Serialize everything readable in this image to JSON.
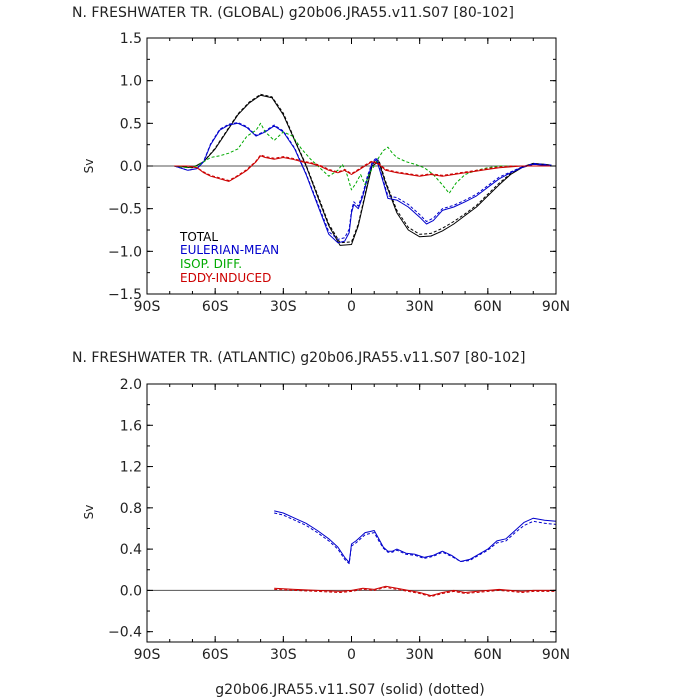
{
  "footer": "g20b06.JRA55.v11.S07 (solid)  (dotted)",
  "colors": {
    "total": "#000000",
    "eulerian": "#0000cc",
    "isop": "#00aa00",
    "eddy": "#cc0000",
    "axis": "#000000",
    "zero": "#555555"
  },
  "chart_data": [
    {
      "type": "line",
      "title": "N. FRESHWATER TR. (GLOBAL) g20b06.JRA55.v11.S07 [80-102]",
      "ylabel": "Sv",
      "xlim": [
        -90,
        90
      ],
      "ylim": [
        -1.5,
        1.5
      ],
      "xticks": [
        -90,
        -60,
        -30,
        0,
        30,
        60,
        90
      ],
      "xtick_labels": [
        "90S",
        "60S",
        "30S",
        "0",
        "30N",
        "60N",
        "90N"
      ],
      "yticks": [
        -1.5,
        -1.0,
        -0.5,
        0.0,
        0.5,
        1.0,
        1.5
      ],
      "ytick_labels": [
        "−1.5",
        "−1.0",
        "−0.5",
        "0.0",
        "0.5",
        "1.0",
        "1.5"
      ],
      "legend": [
        "TOTAL",
        "EULERIAN-MEAN",
        "ISOP. DIFF.",
        "EDDY-INDUCED"
      ],
      "series": [
        {
          "key": "total",
          "style": "solid",
          "x": [
            -78,
            -70,
            -65,
            -60,
            -55,
            -50,
            -45,
            -40,
            -35,
            -30,
            -25,
            -20,
            -15,
            -10,
            -5,
            0,
            3,
            6,
            9,
            12,
            15,
            20,
            25,
            30,
            35,
            40,
            45,
            50,
            55,
            60,
            65,
            70,
            75,
            80,
            85,
            88
          ],
          "y": [
            0.0,
            -0.02,
            0.05,
            0.2,
            0.4,
            0.6,
            0.74,
            0.83,
            0.8,
            0.6,
            0.3,
            0.0,
            -0.35,
            -0.7,
            -0.93,
            -0.92,
            -0.7,
            -0.35,
            0.0,
            0.05,
            -0.2,
            -0.55,
            -0.75,
            -0.83,
            -0.82,
            -0.76,
            -0.68,
            -0.58,
            -0.48,
            -0.35,
            -0.22,
            -0.1,
            -0.02,
            0.02,
            0.01,
            0.0
          ]
        },
        {
          "key": "total",
          "style": "dotted",
          "x": [
            -78,
            -70,
            -65,
            -60,
            -55,
            -50,
            -45,
            -40,
            -35,
            -30,
            -25,
            -20,
            -15,
            -10,
            -5,
            0,
            3,
            6,
            9,
            12,
            15,
            20,
            25,
            30,
            35,
            40,
            45,
            50,
            55,
            60,
            65,
            70,
            75,
            80,
            85,
            88
          ],
          "y": [
            0.0,
            -0.02,
            0.05,
            0.21,
            0.41,
            0.61,
            0.75,
            0.84,
            0.81,
            0.62,
            0.31,
            0.01,
            -0.33,
            -0.68,
            -0.9,
            -0.89,
            -0.68,
            -0.33,
            0.02,
            0.07,
            -0.18,
            -0.52,
            -0.72,
            -0.8,
            -0.79,
            -0.73,
            -0.65,
            -0.56,
            -0.46,
            -0.33,
            -0.2,
            -0.09,
            -0.01,
            0.03,
            0.02,
            0.01
          ]
        },
        {
          "key": "eulerian",
          "style": "solid",
          "x": [
            -78,
            -72,
            -68,
            -65,
            -62,
            -58,
            -54,
            -50,
            -46,
            -42,
            -38,
            -34,
            -30,
            -25,
            -20,
            -15,
            -10,
            -6,
            -3,
            -1,
            0,
            1,
            3,
            5,
            7,
            9,
            11,
            13,
            16,
            20,
            25,
            30,
            33,
            36,
            40,
            45,
            50,
            55,
            60,
            65,
            70,
            75,
            80,
            85,
            88
          ],
          "y": [
            0.0,
            -0.05,
            -0.03,
            0.05,
            0.25,
            0.42,
            0.48,
            0.5,
            0.45,
            0.35,
            0.4,
            0.47,
            0.4,
            0.2,
            -0.1,
            -0.45,
            -0.8,
            -0.9,
            -0.88,
            -0.78,
            -0.55,
            -0.45,
            -0.5,
            -0.35,
            -0.15,
            0.02,
            0.08,
            -0.1,
            -0.38,
            -0.4,
            -0.48,
            -0.6,
            -0.68,
            -0.64,
            -0.52,
            -0.48,
            -0.42,
            -0.35,
            -0.25,
            -0.15,
            -0.08,
            -0.02,
            0.02,
            0.01,
            0.0
          ]
        },
        {
          "key": "eulerian",
          "style": "dotted",
          "x": [
            -78,
            -72,
            -68,
            -65,
            -62,
            -58,
            -54,
            -50,
            -46,
            -42,
            -38,
            -34,
            -30,
            -25,
            -20,
            -15,
            -10,
            -6,
            -3,
            -1,
            0,
            1,
            3,
            5,
            7,
            9,
            11,
            13,
            16,
            20,
            25,
            30,
            33,
            36,
            40,
            45,
            50,
            55,
            60,
            65,
            70,
            75,
            80,
            85,
            88
          ],
          "y": [
            0.0,
            -0.05,
            -0.03,
            0.06,
            0.26,
            0.43,
            0.49,
            0.51,
            0.46,
            0.36,
            0.41,
            0.48,
            0.41,
            0.21,
            -0.09,
            -0.43,
            -0.77,
            -0.86,
            -0.84,
            -0.74,
            -0.52,
            -0.42,
            -0.47,
            -0.32,
            -0.12,
            0.04,
            0.1,
            -0.08,
            -0.35,
            -0.37,
            -0.45,
            -0.57,
            -0.65,
            -0.61,
            -0.5,
            -0.46,
            -0.4,
            -0.33,
            -0.23,
            -0.13,
            -0.07,
            -0.01,
            0.03,
            0.02,
            0.01
          ]
        },
        {
          "key": "isop",
          "style": "dotted",
          "x": [
            -78,
            -72,
            -68,
            -65,
            -62,
            -58,
            -54,
            -50,
            -46,
            -42,
            -40,
            -38,
            -34,
            -30,
            -26,
            -22,
            -18,
            -14,
            -10,
            -6,
            -4,
            -2,
            0,
            2,
            4,
            6,
            8,
            10,
            12,
            14,
            16,
            18,
            20,
            24,
            28,
            32,
            36,
            40,
            43,
            46,
            50,
            55,
            60,
            65,
            70,
            75,
            80,
            85,
            88
          ],
          "y": [
            0.0,
            -0.02,
            0.0,
            0.05,
            0.1,
            0.12,
            0.15,
            0.2,
            0.35,
            0.42,
            0.5,
            0.4,
            0.3,
            0.4,
            0.35,
            0.2,
            0.08,
            -0.02,
            -0.12,
            -0.05,
            0.02,
            -0.1,
            -0.28,
            -0.2,
            -0.1,
            -0.22,
            -0.08,
            0.0,
            0.1,
            0.18,
            0.22,
            0.15,
            0.1,
            0.05,
            0.02,
            -0.02,
            -0.1,
            -0.22,
            -0.32,
            -0.2,
            -0.1,
            -0.05,
            -0.02,
            0.0,
            0.0,
            0.0,
            0.0,
            0.0,
            0.0
          ]
        },
        {
          "key": "eddy",
          "style": "solid",
          "x": [
            -78,
            -72,
            -68,
            -65,
            -62,
            -58,
            -54,
            -50,
            -46,
            -42,
            -40,
            -38,
            -34,
            -30,
            -26,
            -22,
            -18,
            -14,
            -10,
            -6,
            -3,
            0,
            3,
            6,
            9,
            12,
            15,
            20,
            25,
            30,
            35,
            40,
            45,
            50,
            55,
            60,
            65,
            70,
            75,
            80,
            85,
            88
          ],
          "y": [
            0.0,
            0.0,
            -0.02,
            -0.08,
            -0.12,
            -0.15,
            -0.18,
            -0.12,
            -0.05,
            0.05,
            0.12,
            0.1,
            0.08,
            0.1,
            0.08,
            0.05,
            0.03,
            0.0,
            -0.05,
            -0.08,
            -0.05,
            -0.1,
            -0.05,
            0.0,
            0.05,
            0.02,
            -0.05,
            -0.08,
            -0.1,
            -0.12,
            -0.1,
            -0.12,
            -0.1,
            -0.08,
            -0.06,
            -0.04,
            -0.02,
            -0.01,
            0.0,
            0.0,
            0.0,
            0.0
          ]
        },
        {
          "key": "eddy",
          "style": "dotted",
          "x": [
            -78,
            -72,
            -68,
            -65,
            -62,
            -58,
            -54,
            -50,
            -46,
            -42,
            -40,
            -38,
            -34,
            -30,
            -26,
            -22,
            -18,
            -14,
            -10,
            -6,
            -3,
            0,
            3,
            6,
            9,
            12,
            15,
            20,
            25,
            30,
            35,
            40,
            45,
            50,
            55,
            60,
            65,
            70,
            75,
            80,
            85,
            88
          ],
          "y": [
            0.0,
            0.0,
            -0.02,
            -0.07,
            -0.11,
            -0.14,
            -0.17,
            -0.11,
            -0.04,
            0.06,
            0.13,
            0.11,
            0.09,
            0.11,
            0.09,
            0.06,
            0.04,
            0.01,
            -0.04,
            -0.07,
            -0.04,
            -0.09,
            -0.04,
            0.01,
            0.06,
            0.03,
            -0.04,
            -0.07,
            -0.09,
            -0.11,
            -0.09,
            -0.11,
            -0.09,
            -0.07,
            -0.05,
            -0.03,
            -0.01,
            0.0,
            0.0,
            0.0,
            0.0,
            0.0
          ]
        }
      ]
    },
    {
      "type": "line",
      "title": "N. FRESHWATER TR. (ATLANTIC) g20b06.JRA55.v11.S07 [80-102]",
      "ylabel": "Sv",
      "xlim": [
        -90,
        90
      ],
      "ylim": [
        -0.5,
        2.0
      ],
      "xticks": [
        -90,
        -60,
        -30,
        0,
        30,
        60,
        90
      ],
      "xtick_labels": [
        "90S",
        "60S",
        "30S",
        "0",
        "30N",
        "60N",
        "90N"
      ],
      "yticks": [
        -0.4,
        0.0,
        0.4,
        0.8,
        1.2,
        1.6,
        2.0
      ],
      "ytick_labels": [
        "−0.4",
        "0.0",
        "0.4",
        "0.8",
        "1.2",
        "1.6",
        "2.0"
      ],
      "series": [
        {
          "key": "eulerian",
          "style": "solid",
          "x": [
            -34,
            -30,
            -25,
            -20,
            -15,
            -10,
            -6,
            -3,
            -1,
            0,
            2,
            4,
            6,
            8,
            10,
            12,
            14,
            16,
            18,
            20,
            24,
            28,
            32,
            36,
            40,
            44,
            48,
            52,
            56,
            60,
            64,
            68,
            72,
            76,
            80,
            85,
            90
          ],
          "y": [
            0.77,
            0.75,
            0.7,
            0.65,
            0.58,
            0.5,
            0.42,
            0.32,
            0.27,
            0.45,
            0.48,
            0.52,
            0.56,
            0.57,
            0.58,
            0.5,
            0.42,
            0.38,
            0.38,
            0.4,
            0.36,
            0.35,
            0.32,
            0.34,
            0.38,
            0.34,
            0.28,
            0.3,
            0.35,
            0.4,
            0.48,
            0.5,
            0.58,
            0.66,
            0.7,
            0.68,
            0.67
          ]
        },
        {
          "key": "eulerian",
          "style": "dotted",
          "x": [
            -34,
            -30,
            -25,
            -20,
            -15,
            -10,
            -6,
            -3,
            -1,
            0,
            2,
            4,
            6,
            8,
            10,
            12,
            14,
            16,
            18,
            20,
            24,
            28,
            32,
            36,
            40,
            44,
            48,
            52,
            56,
            60,
            64,
            68,
            72,
            76,
            80,
            85,
            90
          ],
          "y": [
            0.75,
            0.73,
            0.68,
            0.63,
            0.56,
            0.48,
            0.4,
            0.3,
            0.26,
            0.43,
            0.46,
            0.5,
            0.54,
            0.55,
            0.56,
            0.48,
            0.41,
            0.37,
            0.37,
            0.39,
            0.35,
            0.34,
            0.31,
            0.33,
            0.37,
            0.33,
            0.28,
            0.29,
            0.34,
            0.39,
            0.46,
            0.48,
            0.56,
            0.63,
            0.67,
            0.65,
            0.64
          ]
        },
        {
          "key": "eddy",
          "style": "solid",
          "x": [
            -34,
            -25,
            -15,
            -5,
            0,
            5,
            10,
            15,
            20,
            25,
            30,
            35,
            40,
            45,
            50,
            55,
            60,
            65,
            70,
            75,
            80,
            85,
            90
          ],
          "y": [
            0.02,
            0.01,
            0.0,
            -0.01,
            0.0,
            0.02,
            0.01,
            0.04,
            0.02,
            0.0,
            -0.02,
            -0.05,
            -0.02,
            0.0,
            -0.02,
            -0.01,
            0.0,
            0.01,
            0.0,
            -0.01,
            0.0,
            0.0,
            0.0
          ]
        },
        {
          "key": "eddy",
          "style": "dotted",
          "x": [
            -34,
            -25,
            -15,
            -5,
            0,
            5,
            10,
            15,
            20,
            25,
            30,
            35,
            40,
            45,
            50,
            55,
            60,
            65,
            70,
            75,
            80,
            85,
            90
          ],
          "y": [
            0.01,
            0.0,
            -0.01,
            -0.02,
            -0.01,
            0.01,
            0.0,
            0.03,
            0.01,
            -0.01,
            -0.03,
            -0.06,
            -0.03,
            -0.01,
            -0.03,
            -0.02,
            -0.01,
            0.0,
            -0.01,
            -0.02,
            -0.01,
            -0.01,
            -0.01
          ]
        }
      ]
    }
  ]
}
